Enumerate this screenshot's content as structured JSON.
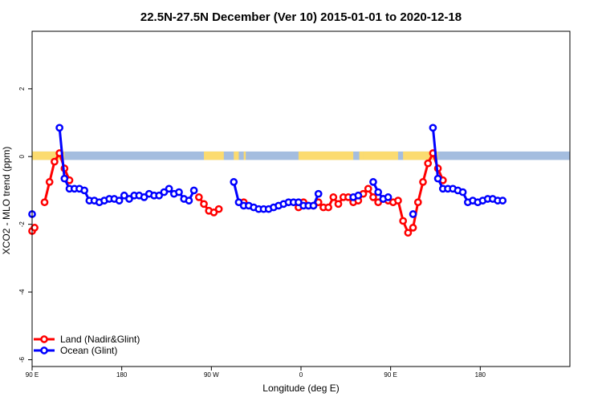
{
  "chart_data": {
    "type": "line",
    "title": "22.5N-27.5N December (Ver 10)   2015-01-01 to 2020-12-18",
    "xlabel": "Longitude (deg E)",
    "ylabel": "XCO2 - MLO trend (ppm)",
    "xlim": [
      90,
      630
    ],
    "ylim": [
      -6.2,
      3.7
    ],
    "x_ticks": [
      {
        "value": 90,
        "label": "90 E"
      },
      {
        "value": 180,
        "label": "180"
      },
      {
        "value": 270,
        "label": "90 W"
      },
      {
        "value": 360,
        "label": "0"
      },
      {
        "value": 450,
        "label": "90 E"
      },
      {
        "value": 540,
        "label": "180"
      }
    ],
    "y_ticks": [
      {
        "value": 2,
        "label": "2"
      },
      {
        "value": 0,
        "label": "0"
      },
      {
        "value": -2,
        "label": "-2"
      },
      {
        "value": -4,
        "label": "-4"
      },
      {
        "value": -6,
        "label": "-6"
      }
    ],
    "series": [
      {
        "name": "Land (Nadir&Glint)",
        "color": "#ff0000",
        "points": [
          [
            90,
            -2.2
          ],
          [
            92.5,
            -2.1
          ],
          [
            102.5,
            -1.35
          ],
          [
            107.5,
            -0.75
          ],
          [
            112.5,
            -0.15
          ],
          [
            117.5,
            0.1
          ],
          [
            122.5,
            -0.35
          ],
          [
            127.5,
            -0.7
          ],
          [
            257.5,
            -1.2
          ],
          [
            262.5,
            -1.4
          ],
          [
            267.5,
            -1.6
          ],
          [
            272.5,
            -1.65
          ],
          [
            277.5,
            -1.55
          ],
          [
            302.5,
            -1.35
          ],
          [
            357.5,
            -1.5
          ],
          [
            362.5,
            -1.35
          ],
          [
            367.5,
            -1.45
          ],
          [
            372.5,
            -1.45
          ],
          [
            377.5,
            -1.35
          ],
          [
            382.5,
            -1.5
          ],
          [
            387.5,
            -1.5
          ],
          [
            392.5,
            -1.2
          ],
          [
            397.5,
            -1.4
          ],
          [
            402.5,
            -1.2
          ],
          [
            407.5,
            -1.2
          ],
          [
            412.5,
            -1.35
          ],
          [
            417.5,
            -1.3
          ],
          [
            422.5,
            -1.1
          ],
          [
            427.5,
            -0.95
          ],
          [
            432.5,
            -1.2
          ],
          [
            437.5,
            -1.35
          ],
          [
            442.5,
            -1.25
          ],
          [
            447.5,
            -1.3
          ],
          [
            452.5,
            -1.35
          ],
          [
            457.5,
            -1.3
          ],
          [
            462.5,
            -1.9
          ],
          [
            467.5,
            -2.25
          ],
          [
            472.5,
            -2.1
          ],
          [
            477.5,
            -1.35
          ],
          [
            482.5,
            -0.75
          ],
          [
            487.5,
            -0.2
          ],
          [
            492.5,
            0.1
          ],
          [
            497.5,
            -0.35
          ],
          [
            502.5,
            -0.7
          ]
        ]
      },
      {
        "name": "Ocean (Glint)",
        "color": "#0000ff",
        "points": [
          [
            90,
            -1.7
          ],
          [
            117.5,
            0.85
          ],
          [
            122.5,
            -0.65
          ],
          [
            127.5,
            -0.95
          ],
          [
            132.5,
            -0.95
          ],
          [
            137.5,
            -0.95
          ],
          [
            142.5,
            -1.0
          ],
          [
            147.5,
            -1.3
          ],
          [
            152.5,
            -1.3
          ],
          [
            157.5,
            -1.35
          ],
          [
            162.5,
            -1.3
          ],
          [
            167.5,
            -1.25
          ],
          [
            172.5,
            -1.25
          ],
          [
            177.5,
            -1.3
          ],
          [
            182.5,
            -1.15
          ],
          [
            187.5,
            -1.25
          ],
          [
            192.5,
            -1.15
          ],
          [
            197.5,
            -1.15
          ],
          [
            202.5,
            -1.2
          ],
          [
            207.5,
            -1.1
          ],
          [
            212.5,
            -1.15
          ],
          [
            217.5,
            -1.15
          ],
          [
            222.5,
            -1.05
          ],
          [
            227.5,
            -0.95
          ],
          [
            232.5,
            -1.1
          ],
          [
            237.5,
            -1.05
          ],
          [
            242.5,
            -1.25
          ],
          [
            247.5,
            -1.3
          ],
          [
            252.5,
            -1.0
          ],
          [
            292.5,
            -0.75
          ],
          [
            297.5,
            -1.35
          ],
          [
            302.5,
            -1.45
          ],
          [
            307.5,
            -1.45
          ],
          [
            312.5,
            -1.5
          ],
          [
            317.5,
            -1.55
          ],
          [
            322.5,
            -1.55
          ],
          [
            327.5,
            -1.55
          ],
          [
            332.5,
            -1.5
          ],
          [
            337.5,
            -1.45
          ],
          [
            342.5,
            -1.4
          ],
          [
            347.5,
            -1.35
          ],
          [
            352.5,
            -1.35
          ],
          [
            357.5,
            -1.35
          ],
          [
            362.5,
            -1.45
          ],
          [
            367.5,
            -1.45
          ],
          [
            372.5,
            -1.45
          ],
          [
            377.5,
            -1.1
          ],
          [
            412.5,
            -1.2
          ],
          [
            417.5,
            -1.15
          ],
          [
            432.5,
            -0.75
          ],
          [
            437.5,
            -1.05
          ],
          [
            442.5,
            -1.25
          ],
          [
            447.5,
            -1.2
          ],
          [
            472.5,
            -1.7
          ],
          [
            492.5,
            0.85
          ],
          [
            497.5,
            -0.65
          ],
          [
            502.5,
            -0.95
          ],
          [
            507.5,
            -0.95
          ],
          [
            512.5,
            -0.95
          ],
          [
            517.5,
            -1.0
          ],
          [
            522.5,
            -1.05
          ],
          [
            527.5,
            -1.35
          ],
          [
            532.5,
            -1.3
          ],
          [
            537.5,
            -1.35
          ],
          [
            542.5,
            -1.3
          ],
          [
            547.5,
            -1.25
          ],
          [
            552.5,
            -1.25
          ],
          [
            557.5,
            -1.3
          ],
          [
            562.5,
            -1.3
          ]
        ]
      }
    ],
    "legend_position": "bottom-left",
    "grid": false,
    "surface_band": {
      "y_range": [
        -0.1,
        0.15
      ],
      "ocean_color": "#a4bddf",
      "land_color": "#fbdb70",
      "land_segments": [
        [
          90,
          122.5
        ],
        [
          262.5,
          282.5
        ],
        [
          292.5,
          297.5
        ],
        [
          302.5,
          304.5
        ],
        [
          357.5,
          412.5
        ],
        [
          418.5,
          422.5
        ],
        [
          422.5,
          457.5
        ],
        [
          462.5,
          497.5
        ]
      ]
    }
  }
}
